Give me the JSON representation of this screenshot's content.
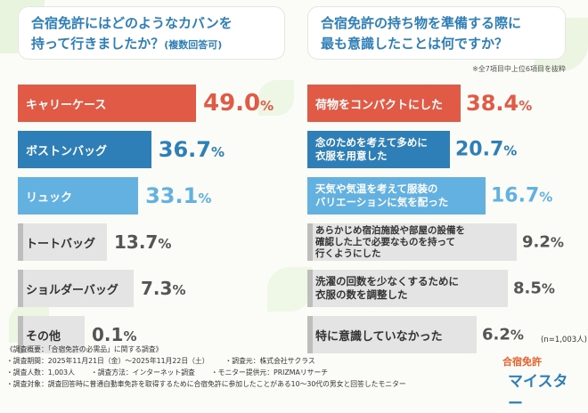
{
  "colors": {
    "red": "#e05a46",
    "blue_dark": "#2e7fb8",
    "blue_light": "#62b1e1",
    "gray": "#e4e4e4",
    "gray_edge": "#bdbdbd"
  },
  "left": {
    "question_line1": "合宿免許にはどのようなカバンを",
    "question_line2": "持って行きましたか？",
    "question_note": "(複数回答可)"
  },
  "right": {
    "question_line1": "合宿免許の持ち物を準備する際に",
    "question_line2": "最も意識したことは何ですか？",
    "note": "※全7項目中上位6項目を抜粋",
    "sample": "(n=1,003人)"
  },
  "chart_data": [
    {
      "type": "bar",
      "orientation": "horizontal",
      "title": "合宿免許にはどのようなカバンを持って行きましたか？(複数回答可)",
      "unit": "%",
      "categories": [
        "キャリーケース",
        "ボストンバッグ",
        "リュック",
        "トートバッグ",
        "ショルダーバッグ",
        "その他"
      ],
      "values": [
        49.0,
        36.7,
        33.1,
        13.7,
        7.3,
        0.1
      ],
      "value_labels": [
        "49.0",
        "36.7",
        "33.1",
        "13.7",
        "7.3",
        "0.1"
      ]
    },
    {
      "type": "bar",
      "orientation": "horizontal",
      "title": "合宿免許の持ち物を準備する際に最も意識したことは何ですか？",
      "unit": "%",
      "categories": [
        "荷物をコンパクトにした",
        "念のためを考えて多めに衣服を用意した",
        "天気や気温を考えて服装のバリエーションに気を配った",
        "あらかじめ宿泊施設や部屋の設備を確認した上で必要なものを持って行くようにした",
        "洗濯の回数を少なくするために衣服の数を調整した",
        "特に意識していなかった"
      ],
      "label_lines": [
        [
          "荷物をコンパクトにした"
        ],
        [
          "念のためを考えて多めに",
          "衣服を用意した"
        ],
        [
          "天気や気温を考えて服装の",
          "バリエーションに気を配った"
        ],
        [
          "あらかじめ宿泊施設や部屋の設備を",
          "確認した上で必要なものを持って",
          "行くようにした"
        ],
        [
          "洗濯の回数を少なくするために",
          "衣服の数を調整した"
        ],
        [
          "特に意識していなかった"
        ]
      ],
      "values": [
        38.4,
        20.7,
        16.7,
        9.2,
        8.5,
        6.2
      ],
      "value_labels": [
        "38.4",
        "20.7",
        "16.7",
        "9.2",
        "8.5",
        "6.2"
      ]
    }
  ],
  "overview": {
    "title": "《調査概要：「合宿免許の必需品」に関する調査》",
    "period": "・調査期間：2025年11月21日（金）～2025年11月22日（土）",
    "company": "・調査元：株式会社サクラス",
    "count": "・調査人数：1,003人",
    "method": "・調査方法：インターネット調査",
    "provider": "・モニター提供元：PRIZMAリサーチ",
    "target": "・調査対象：調査回答時に普通自動車免許を取得するために合宿免許に参加したことがある10～30代の男女と回答したモニター"
  },
  "logo": {
    "top": "合宿免許",
    "main": "マイスター"
  }
}
